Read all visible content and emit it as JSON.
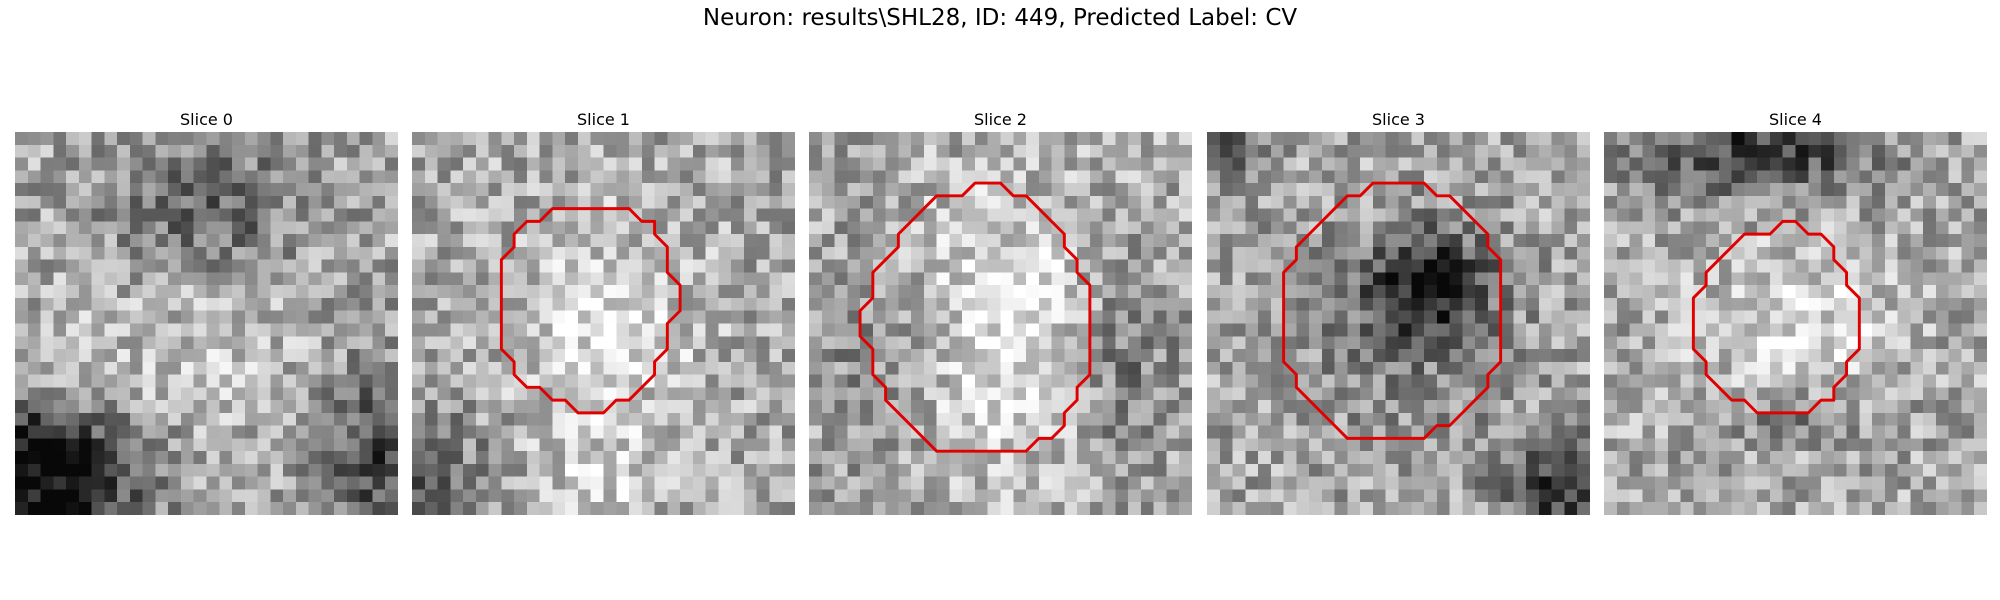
{
  "figure": {
    "title": "Neuron: results\\SHL28, ID: 449, Predicted Label: CV"
  },
  "contour_color": "#e00000",
  "slices": [
    {
      "label": "Slice 0",
      "seed": 11,
      "dark": [
        [
          0.5,
          0.2,
          0.25,
          0.18,
          0.3
        ],
        [
          0.03,
          0.82,
          0.28,
          0.12,
          0.5
        ],
        [
          0.13,
          0.97,
          0.2,
          0.14,
          0.5
        ],
        [
          0.97,
          0.85,
          0.16,
          0.24,
          0.4
        ],
        [
          0.45,
          0.55,
          0.3,
          0.3,
          -0.1
        ]
      ],
      "contour": []
    },
    {
      "label": "Slice 1",
      "seed": 23,
      "dark": [
        [
          0.5,
          0.52,
          0.24,
          0.27,
          -0.22
        ],
        [
          0.02,
          0.92,
          0.2,
          0.2,
          0.25
        ],
        [
          0.5,
          0.9,
          0.2,
          0.1,
          -0.15
        ]
      ],
      "contour": [
        [
          14,
          6
        ],
        [
          17,
          6
        ],
        [
          18,
          7
        ],
        [
          19,
          7
        ],
        [
          19,
          8
        ],
        [
          20,
          9
        ],
        [
          20,
          10
        ],
        [
          20,
          11
        ],
        [
          21,
          12
        ],
        [
          21,
          13
        ],
        [
          21,
          14
        ],
        [
          20,
          15
        ],
        [
          20,
          16
        ],
        [
          20,
          17
        ],
        [
          19,
          18
        ],
        [
          19,
          19
        ],
        [
          18,
          20
        ],
        [
          17,
          21
        ],
        [
          16,
          21
        ],
        [
          15,
          22
        ],
        [
          14,
          22
        ],
        [
          13,
          22
        ],
        [
          12,
          21
        ],
        [
          11,
          21
        ],
        [
          10,
          20
        ],
        [
          9,
          20
        ],
        [
          8,
          19
        ],
        [
          8,
          18
        ],
        [
          7,
          17
        ],
        [
          7,
          16
        ],
        [
          7,
          15
        ],
        [
          7,
          14
        ],
        [
          7,
          13
        ],
        [
          7,
          12
        ],
        [
          7,
          11
        ],
        [
          7,
          10
        ],
        [
          8,
          9
        ],
        [
          8,
          8
        ],
        [
          9,
          7
        ],
        [
          10,
          7
        ],
        [
          11,
          6
        ],
        [
          12,
          6
        ],
        [
          13,
          6
        ]
      ]
    },
    {
      "label": "Slice 2",
      "seed": 37,
      "dark": [
        [
          0.5,
          0.52,
          0.36,
          0.37,
          -0.25
        ],
        [
          0.18,
          0.55,
          0.2,
          0.3,
          0.2
        ],
        [
          0.82,
          0.6,
          0.15,
          0.3,
          0.25
        ]
      ],
      "contour": [
        [
          14,
          4
        ],
        [
          15,
          4
        ],
        [
          16,
          5
        ],
        [
          17,
          5
        ],
        [
          18,
          6
        ],
        [
          19,
          7
        ],
        [
          20,
          8
        ],
        [
          20,
          9
        ],
        [
          21,
          10
        ],
        [
          21,
          11
        ],
        [
          22,
          12
        ],
        [
          22,
          13
        ],
        [
          22,
          14
        ],
        [
          22,
          15
        ],
        [
          22,
          16
        ],
        [
          22,
          17
        ],
        [
          22,
          18
        ],
        [
          22,
          19
        ],
        [
          21,
          20
        ],
        [
          21,
          21
        ],
        [
          20,
          22
        ],
        [
          20,
          23
        ],
        [
          19,
          24
        ],
        [
          18,
          24
        ],
        [
          17,
          25
        ],
        [
          16,
          25
        ],
        [
          15,
          25
        ],
        [
          14,
          25
        ],
        [
          13,
          25
        ],
        [
          12,
          25
        ],
        [
          11,
          25
        ],
        [
          10,
          25
        ],
        [
          9,
          24
        ],
        [
          8,
          23
        ],
        [
          7,
          22
        ],
        [
          6,
          21
        ],
        [
          6,
          20
        ],
        [
          5,
          19
        ],
        [
          5,
          18
        ],
        [
          5,
          17
        ],
        [
          4,
          16
        ],
        [
          4,
          15
        ],
        [
          4,
          14
        ],
        [
          5,
          13
        ],
        [
          5,
          12
        ],
        [
          5,
          11
        ],
        [
          6,
          10
        ],
        [
          7,
          9
        ],
        [
          7,
          8
        ],
        [
          8,
          7
        ],
        [
          9,
          6
        ],
        [
          10,
          5
        ],
        [
          11,
          5
        ],
        [
          12,
          5
        ],
        [
          13,
          4
        ]
      ]
    },
    {
      "label": "Slice 3",
      "seed": 53,
      "dark": [
        [
          0.58,
          0.4,
          0.16,
          0.14,
          0.55
        ],
        [
          0.05,
          0.05,
          0.08,
          0.08,
          0.3
        ],
        [
          0.93,
          0.93,
          0.16,
          0.12,
          0.45
        ],
        [
          0.5,
          0.55,
          0.34,
          0.3,
          0.12
        ]
      ],
      "contour": [
        [
          15,
          4
        ],
        [
          17,
          4
        ],
        [
          18,
          5
        ],
        [
          19,
          5
        ],
        [
          20,
          6
        ],
        [
          21,
          7
        ],
        [
          22,
          8
        ],
        [
          22,
          9
        ],
        [
          23,
          10
        ],
        [
          23,
          11
        ],
        [
          23,
          12
        ],
        [
          23,
          13
        ],
        [
          23,
          14
        ],
        [
          23,
          15
        ],
        [
          23,
          16
        ],
        [
          23,
          17
        ],
        [
          23,
          18
        ],
        [
          22,
          19
        ],
        [
          22,
          20
        ],
        [
          21,
          21
        ],
        [
          20,
          22
        ],
        [
          19,
          23
        ],
        [
          18,
          23
        ],
        [
          17,
          24
        ],
        [
          16,
          24
        ],
        [
          15,
          24
        ],
        [
          14,
          24
        ],
        [
          13,
          24
        ],
        [
          12,
          24
        ],
        [
          11,
          24
        ],
        [
          10,
          23
        ],
        [
          9,
          22
        ],
        [
          8,
          21
        ],
        [
          7,
          20
        ],
        [
          7,
          19
        ],
        [
          6,
          18
        ],
        [
          6,
          17
        ],
        [
          6,
          16
        ],
        [
          6,
          15
        ],
        [
          6,
          14
        ],
        [
          6,
          13
        ],
        [
          6,
          12
        ],
        [
          6,
          11
        ],
        [
          7,
          10
        ],
        [
          7,
          9
        ],
        [
          8,
          8
        ],
        [
          9,
          7
        ],
        [
          10,
          6
        ],
        [
          11,
          5
        ],
        [
          12,
          5
        ],
        [
          13,
          4
        ]
      ]
    },
    {
      "label": "Slice 4",
      "seed": 71,
      "dark": [
        [
          0.42,
          0.05,
          0.3,
          0.12,
          0.45
        ],
        [
          0.5,
          0.52,
          0.25,
          0.26,
          -0.2
        ],
        [
          0.5,
          0.75,
          0.2,
          0.08,
          0.25
        ]
      ],
      "contour": [
        [
          14,
          7
        ],
        [
          15,
          7
        ],
        [
          16,
          8
        ],
        [
          17,
          8
        ],
        [
          18,
          9
        ],
        [
          18,
          10
        ],
        [
          19,
          11
        ],
        [
          19,
          12
        ],
        [
          20,
          13
        ],
        [
          20,
          14
        ],
        [
          20,
          15
        ],
        [
          20,
          16
        ],
        [
          20,
          17
        ],
        [
          19,
          18
        ],
        [
          19,
          19
        ],
        [
          18,
          20
        ],
        [
          18,
          21
        ],
        [
          17,
          21
        ],
        [
          16,
          22
        ],
        [
          15,
          22
        ],
        [
          14,
          22
        ],
        [
          13,
          22
        ],
        [
          12,
          22
        ],
        [
          11,
          21
        ],
        [
          10,
          21
        ],
        [
          9,
          20
        ],
        [
          8,
          19
        ],
        [
          8,
          18
        ],
        [
          7,
          17
        ],
        [
          7,
          16
        ],
        [
          7,
          15
        ],
        [
          7,
          14
        ],
        [
          7,
          13
        ],
        [
          8,
          12
        ],
        [
          8,
          11
        ],
        [
          9,
          10
        ],
        [
          10,
          9
        ],
        [
          11,
          8
        ],
        [
          12,
          8
        ],
        [
          13,
          8
        ]
      ]
    }
  ]
}
